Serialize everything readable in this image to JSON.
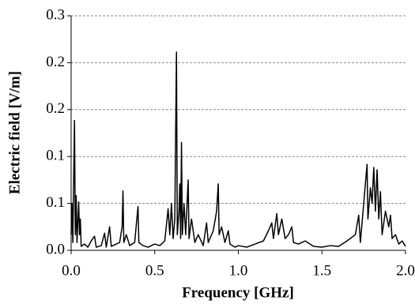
{
  "chart_data": {
    "type": "line",
    "xlabel": "Frequency [GHz]",
    "ylabel": "Electric field [V/m]",
    "xlim": [
      0,
      2
    ],
    "ylim": [
      0,
      0.3
    ],
    "xticks": [
      {
        "value": 0,
        "label": "0.0"
      },
      0.5,
      {
        "value": 1,
        "label": "1.0"
      },
      1.5,
      {
        "value": 2,
        "label": "2.0"
      }
    ],
    "yticks": [
      {
        "value": 0,
        "label": "0.0"
      },
      {
        "value": 0.06,
        "label": "0.1"
      },
      {
        "value": 0.12,
        "label": "0.1"
      },
      {
        "value": 0.18,
        "label": "0.2"
      },
      {
        "value": 0.24,
        "label": "0.2"
      },
      0.3
    ],
    "grid": true,
    "x": [
      0.0,
      0.005,
      0.01,
      0.02,
      0.025,
      0.03,
      0.035,
      0.045,
      0.05,
      0.055,
      0.06,
      0.08,
      0.1,
      0.12,
      0.14,
      0.15,
      0.18,
      0.2,
      0.21,
      0.23,
      0.24,
      0.27,
      0.29,
      0.305,
      0.31,
      0.315,
      0.33,
      0.35,
      0.38,
      0.4,
      0.405,
      0.43,
      0.46,
      0.5,
      0.53,
      0.56,
      0.58,
      0.59,
      0.6,
      0.61,
      0.62,
      0.63,
      0.635,
      0.645,
      0.65,
      0.655,
      0.66,
      0.665,
      0.675,
      0.685,
      0.7,
      0.705,
      0.72,
      0.74,
      0.76,
      0.79,
      0.81,
      0.82,
      0.85,
      0.87,
      0.88,
      0.885,
      0.9,
      0.92,
      0.94,
      0.95,
      0.98,
      1.0,
      1.05,
      1.1,
      1.15,
      1.18,
      1.2,
      1.21,
      1.23,
      1.24,
      1.26,
      1.28,
      1.3,
      1.32,
      1.33,
      1.36,
      1.4,
      1.45,
      1.5,
      1.55,
      1.6,
      1.65,
      1.7,
      1.72,
      1.73,
      1.75,
      1.77,
      1.775,
      1.79,
      1.8,
      1.81,
      1.82,
      1.83,
      1.84,
      1.85,
      1.86,
      1.88,
      1.9,
      1.91,
      1.92,
      1.94,
      1.96,
      1.98,
      2.0
    ],
    "series": [
      {
        "name": "Electric field",
        "color": "#000000",
        "values": [
          0.02,
          0.06,
          0.01,
          0.166,
          0.02,
          0.07,
          0.01,
          0.062,
          0.02,
          0.04,
          0.005,
          0.008,
          0.004,
          0.012,
          0.018,
          0.004,
          0.006,
          0.022,
          0.004,
          0.03,
          0.005,
          0.008,
          0.01,
          0.03,
          0.076,
          0.01,
          0.02,
          0.006,
          0.01,
          0.056,
          0.01,
          0.006,
          0.004,
          0.008,
          0.006,
          0.012,
          0.053,
          0.02,
          0.06,
          0.015,
          0.04,
          0.2535,
          0.02,
          0.05,
          0.085,
          0.015,
          0.138,
          0.02,
          0.06,
          0.02,
          0.09,
          0.015,
          0.04,
          0.01,
          0.02,
          0.006,
          0.035,
          0.01,
          0.025,
          0.05,
          0.085,
          0.02,
          0.03,
          0.01,
          0.025,
          0.008,
          0.004,
          0.006,
          0.004,
          0.008,
          0.012,
          0.025,
          0.035,
          0.015,
          0.047,
          0.02,
          0.04,
          0.015,
          0.02,
          0.03,
          0.01,
          0.008,
          0.012,
          0.005,
          0.004,
          0.006,
          0.005,
          0.012,
          0.02,
          0.045,
          0.01,
          0.06,
          0.11,
          0.04,
          0.08,
          0.06,
          0.106,
          0.05,
          0.103,
          0.04,
          0.075,
          0.02,
          0.05,
          0.03,
          0.045,
          0.015,
          0.02,
          0.008,
          0.012,
          0.005
        ]
      }
    ]
  }
}
